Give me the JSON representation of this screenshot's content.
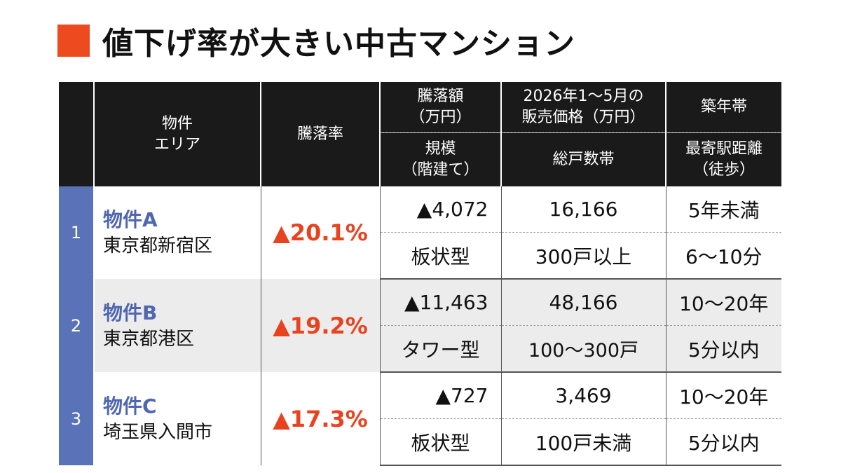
{
  "title": "値下げ率が大きい中古マンション",
  "headers": {
    "property": [
      "物件",
      "エリア"
    ],
    "drop_rate": "騰落率",
    "change_amount": [
      "騰落額",
      "（万円）"
    ],
    "scale": [
      "規模",
      "（階建て）"
    ],
    "price": [
      "2026年1～5月の",
      "販売価格（万円）"
    ],
    "units": "総戸数帯",
    "age": "築年帯",
    "station": [
      "最寄駅距離",
      "（徒歩）"
    ]
  },
  "rows": [
    {
      "rank": "1",
      "name": "物件A",
      "area": "東京都新宿区",
      "rate": "▲20.1%",
      "amount": "▲4,072",
      "price": "16,166",
      "age": "5年未満",
      "scale": "板状型",
      "units": "300戸以上",
      "station": "6～10分"
    },
    {
      "rank": "2",
      "name": "物件B",
      "area": "東京都港区",
      "rate": "▲19.2%",
      "amount": "▲11,463",
      "price": "48,166",
      "age": "10～20年",
      "scale": "タワー型",
      "units": "100～300戸",
      "station": "5分以内"
    },
    {
      "rank": "3",
      "name": "物件C",
      "area": "埼玉県入間市",
      "rate": "▲17.3%",
      "amount": "▲727",
      "price": "3,469",
      "age": "10～20年",
      "scale": "板状型",
      "units": "100戸未満",
      "station": "5分以内"
    }
  ],
  "colors": {
    "accent": "#ee4a1f",
    "rank_bg": "#5a72b8",
    "name_text": "#4f66b0",
    "rate_text": "#e8431e",
    "header_bg": "#1a1a1a"
  }
}
